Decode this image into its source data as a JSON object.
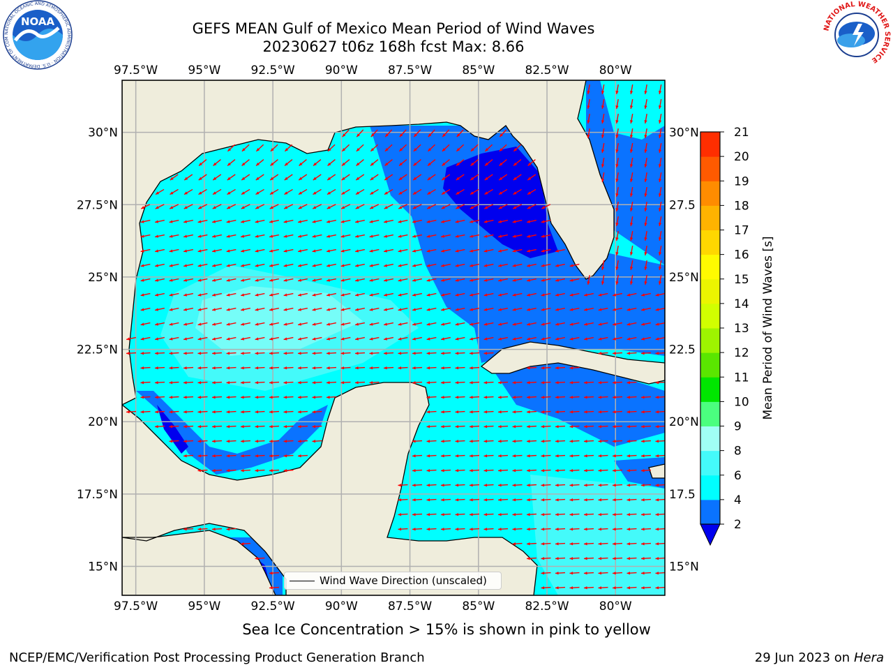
{
  "header": {
    "title_line1": "GEFS MEAN Gulf of Mexico Mean Period of Wind Waves",
    "title_line2": "20230627 t06z 168h fcst   Max: 8.66"
  },
  "logos": {
    "noaa_text": "NOAA",
    "noaa_ring": "NATIONAL OCEANIC AND ATMOSPHERIC ADMINISTRATION · U.S. DEPARTMENT OF COMMERCE",
    "nws_ring": "NATIONAL WEATHER SERVICE"
  },
  "map": {
    "lon_ticks": [
      "97.5°W",
      "95°W",
      "92.5°W",
      "90°W",
      "87.5°W",
      "85°W",
      "82.5°W",
      "80°W"
    ],
    "lat_ticks_left": [
      "30°N",
      "27.5°N",
      "25°N",
      "22.5°N",
      "20°N",
      "17.5°N",
      "15°N"
    ],
    "lat_ticks_right": [
      "30°N",
      "27.5",
      "25°N",
      "22.5",
      "20°N",
      "17.5",
      "15°N"
    ],
    "lon_range": [
      -98,
      -78.2
    ],
    "lat_range": [
      14.0,
      31.8
    ],
    "colors": {
      "land": "#efeddc",
      "band_2_4": "#0a73ff",
      "band_4_6": "#00ffff",
      "band_6_8": "#44fafa",
      "band_8_9": "#a0fff5",
      "band_lt2": "#0000ee",
      "arrow": "#ff0000",
      "grid": "#b0b0b0"
    },
    "legend_label": "Wind Wave Direction (unscaled)"
  },
  "colorbar": {
    "label": "Mean Period of Wind Waves [s]",
    "ticks": [
      "2",
      "4",
      "6",
      "8",
      "9",
      "10",
      "11",
      "12",
      "13",
      "14",
      "15",
      "16",
      "17",
      "18",
      "19",
      "20",
      "21"
    ],
    "colors": [
      "#0a73ff",
      "#00ffff",
      "#44fafa",
      "#a0fff5",
      "#4bff7f",
      "#00e600",
      "#5ae600",
      "#9ef400",
      "#d1ff00",
      "#ebf500",
      "#fffa00",
      "#ffd700",
      "#ffb300",
      "#ff8c00",
      "#ff5a00",
      "#ff2e00",
      "#ff0000"
    ],
    "under_color": "#0000ee"
  },
  "footer": {
    "subtitle": "Sea Ice Concentration > 15% is shown in pink to yellow",
    "left": "NCEP/EMC/Verification Post Processing Product Generation Branch",
    "right_date": "29 Jun 2023 on",
    "right_machine": "Hera"
  }
}
